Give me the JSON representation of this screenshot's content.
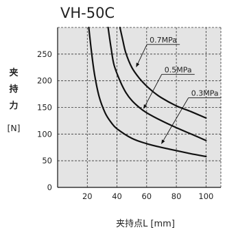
{
  "chart_data": {
    "type": "line",
    "title": "VH-50C",
    "xlabel": "夹持点L [mm]",
    "ylabel_chars": [
      "夹",
      "持",
      "力"
    ],
    "ylabel_unit": "[N]",
    "xlim": [
      0,
      110
    ],
    "ylim": [
      0,
      300
    ],
    "x_ticks": [
      20,
      40,
      60,
      80,
      100
    ],
    "y_ticks": [
      0,
      50,
      100,
      150,
      200,
      250
    ],
    "x_tick_labels": [
      "20",
      "40",
      "60",
      "80",
      "100"
    ],
    "y_tick_labels": [
      "0",
      "50",
      "100",
      "150",
      "200",
      "250"
    ],
    "grid": true,
    "legend_position": "callout labels on curves",
    "series": [
      {
        "name": "0.3MPa",
        "x": [
          21,
          23,
          25,
          28,
          32,
          36,
          40,
          50,
          60,
          70,
          80,
          90,
          100
        ],
        "y": [
          300,
          250,
          210,
          170,
          140,
          122,
          110,
          92,
          82,
          75,
          69,
          63,
          58
        ]
      },
      {
        "name": "0.5MPa",
        "x": [
          34,
          36,
          38,
          42,
          46,
          50,
          55,
          60,
          70,
          80,
          90,
          100
        ],
        "y": [
          300,
          262,
          230,
          200,
          178,
          163,
          150,
          140,
          125,
          112,
          100,
          88
        ]
      },
      {
        "name": "0.7MPa",
        "x": [
          42,
          44,
          46,
          50,
          55,
          60,
          65,
          70,
          80,
          90,
          100
        ],
        "y": [
          300,
          275,
          252,
          225,
          205,
          190,
          178,
          168,
          153,
          142,
          130
        ]
      }
    ],
    "callouts": [
      {
        "series": "0.7MPa",
        "label": "0.7MPa",
        "text_at": [
          62,
          268
        ],
        "tip_at": [
          53,
          226
        ]
      },
      {
        "series": "0.5MPa",
        "label": "0.5MPa",
        "text_at": [
          72,
          212
        ],
        "tip_at": [
          58,
          148
        ]
      },
      {
        "series": "0.3MPa",
        "label": "0.3MPa",
        "text_at": [
          90,
          168
        ],
        "tip_at": [
          70,
          82
        ]
      }
    ]
  }
}
